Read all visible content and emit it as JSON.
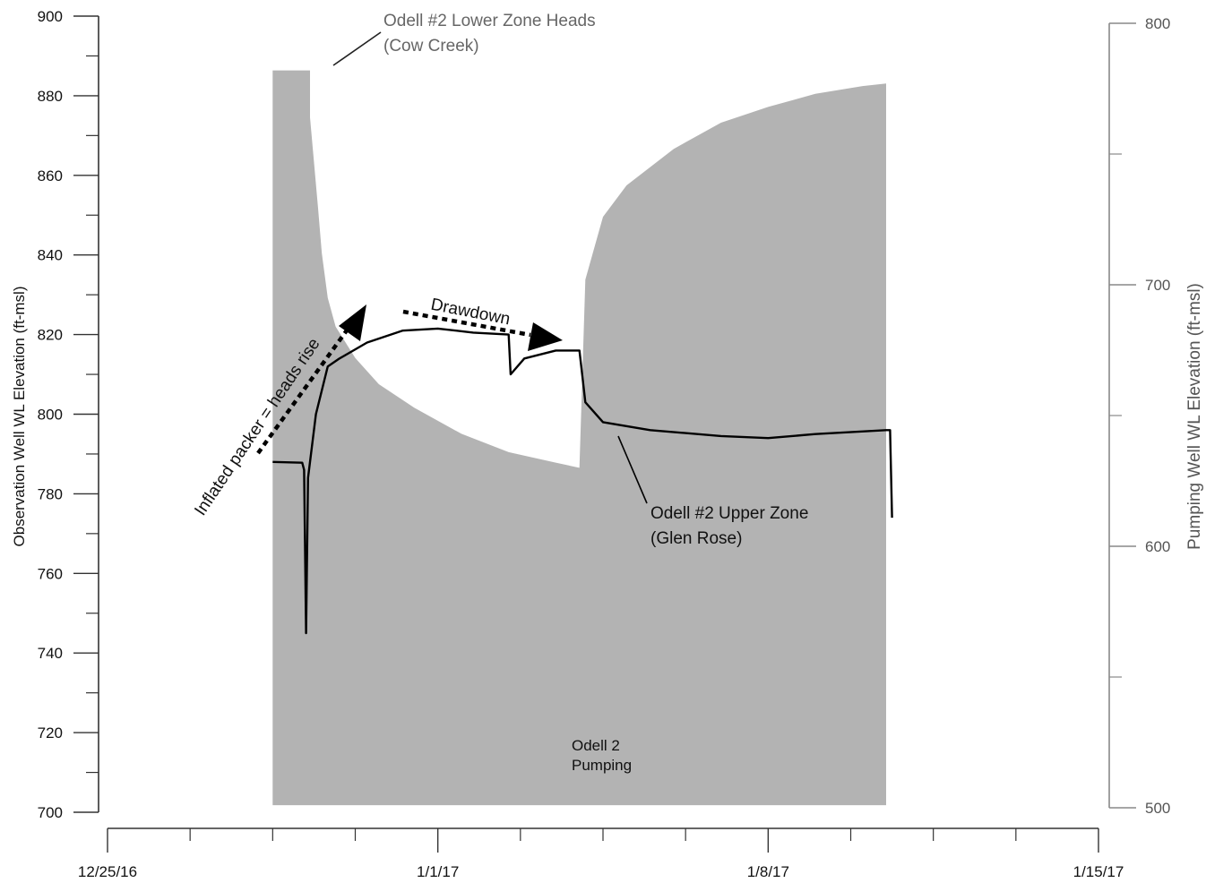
{
  "chart_data": {
    "type": "area",
    "title": "",
    "left_axis": {
      "label": "Observation Well WL Elevation (ft-msl)",
      "range": [
        700,
        900
      ],
      "ticks": [
        "700",
        "720",
        "740",
        "760",
        "780",
        "800",
        "820",
        "840",
        "860",
        "880",
        "900"
      ]
    },
    "right_axis": {
      "label": "Pumping Well WL Elevation (ft-msl)",
      "range": [
        500,
        800
      ],
      "ticks": [
        "500",
        "600",
        "700",
        "800"
      ]
    },
    "x_axis": {
      "range": [
        "2016-12-25",
        "2017-01-15"
      ],
      "ticks": [
        "12/25/16",
        "1/1/17",
        "1/8/17",
        "1/15/17"
      ]
    },
    "grid": false,
    "series": [
      {
        "name": "Odell #2 Lower Zone Heads (Cow Creek)",
        "kind": "area",
        "axis": "right",
        "color": "#b3b3b3",
        "points": [
          [
            "2016-12-28 12:00",
            782
          ],
          [
            "2016-12-29 07:00",
            782
          ],
          [
            "2016-12-29 07:00",
            764
          ],
          [
            "2016-12-29 11:00",
            730
          ],
          [
            "2016-12-29 13:00",
            712
          ],
          [
            "2016-12-29 16:00",
            695
          ],
          [
            "2016-12-29 20:00",
            684
          ],
          [
            "2016-12-30 06:00",
            672
          ],
          [
            "2016-12-30 18:00",
            662
          ],
          [
            "2016-12-31 12:00",
            653
          ],
          [
            "2017-01-01 12:00",
            643
          ],
          [
            "2017-01-02 12:00",
            636
          ],
          [
            "2017-01-03 12:00",
            632
          ],
          [
            "2017-01-04 00:00",
            630
          ],
          [
            "2017-01-04 03:00",
            702
          ],
          [
            "2017-01-04 12:00",
            726
          ],
          [
            "2017-01-05 00:00",
            738
          ],
          [
            "2017-01-06 00:00",
            752
          ],
          [
            "2017-01-07 00:00",
            762
          ],
          [
            "2017-01-08 00:00",
            768
          ],
          [
            "2017-01-09 00:00",
            773
          ],
          [
            "2017-01-10 00:00",
            776
          ],
          [
            "2017-01-10 12:00",
            777
          ],
          [
            "2017-01-10 12:00",
            501
          ],
          [
            "2016-12-28 12:00",
            501
          ]
        ]
      },
      {
        "name": "Odell #2 Upper Zone (Glen Rose)",
        "kind": "line",
        "axis": "left",
        "color": "#000000",
        "points": [
          [
            "2016-12-28 12:00",
            788
          ],
          [
            "2016-12-29 03:00",
            787.8
          ],
          [
            "2016-12-29 04:00",
            786
          ],
          [
            "2016-12-29 05:00",
            745
          ],
          [
            "2016-12-29 06:00",
            784
          ],
          [
            "2016-12-29 10:00",
            800
          ],
          [
            "2016-12-29 16:00",
            812
          ],
          [
            "2016-12-29 22:00",
            814
          ],
          [
            "2016-12-30 12:00",
            818
          ],
          [
            "2016-12-31 06:00",
            821
          ],
          [
            "2017-01-01 00:00",
            821.5
          ],
          [
            "2017-01-01 18:00",
            820.5
          ],
          [
            "2017-01-02 12:00",
            820
          ],
          [
            "2017-01-02 13:00",
            810
          ],
          [
            "2017-01-02 20:00",
            814
          ],
          [
            "2017-01-03 12:00",
            816
          ],
          [
            "2017-01-04 00:00",
            816
          ],
          [
            "2017-01-04 03:00",
            803
          ],
          [
            "2017-01-04 12:00",
            798
          ],
          [
            "2017-01-05 12:00",
            796
          ],
          [
            "2017-01-07 00:00",
            794.5
          ],
          [
            "2017-01-08 00:00",
            794
          ],
          [
            "2017-01-09 00:00",
            795
          ],
          [
            "2017-01-10 12:00",
            796
          ],
          [
            "2017-01-10 14:00",
            796
          ],
          [
            "2017-01-10 15:00",
            774
          ]
        ]
      }
    ],
    "annotations": {
      "lower_zone_line1": "Odell #2 Lower Zone Heads",
      "lower_zone_line2": "(Cow Creek)",
      "upper_zone_line1": "Odell #2 Upper Zone",
      "upper_zone_line2": "(Glen Rose)",
      "packer": "Inflated packer = heads rise",
      "drawdown": "Drawdown",
      "pumping_line1": "Odell 2",
      "pumping_line2": "Pumping"
    }
  }
}
